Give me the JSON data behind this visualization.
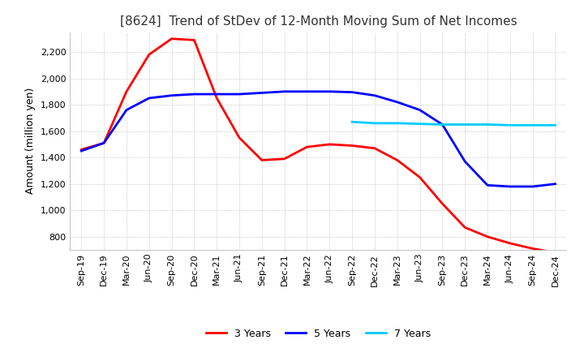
{
  "title": "[8624]  Trend of StDev of 12-Month Moving Sum of Net Incomes",
  "ylabel": "Amount (million yen)",
  "ylim": [
    700,
    2350
  ],
  "yticks": [
    800,
    1000,
    1200,
    1400,
    1600,
    1800,
    2000,
    2200
  ],
  "x_labels": [
    "Sep-19",
    "Dec-19",
    "Mar-20",
    "Jun-20",
    "Sep-20",
    "Dec-20",
    "Mar-21",
    "Jun-21",
    "Sep-21",
    "Dec-21",
    "Mar-22",
    "Jun-22",
    "Sep-22",
    "Dec-22",
    "Mar-23",
    "Jun-23",
    "Sep-23",
    "Dec-23",
    "Mar-24",
    "Jun-24",
    "Sep-24",
    "Dec-24"
  ],
  "series": {
    "3 Years": {
      "color": "#FF0000",
      "values": [
        1460,
        1510,
        1900,
        2180,
        2300,
        2290,
        1850,
        1550,
        1380,
        1390,
        1480,
        1500,
        1490,
        1470,
        1380,
        1250,
        1050,
        870,
        800,
        750,
        710,
        680
      ]
    },
    "5 Years": {
      "color": "#0000FF",
      "values": [
        1450,
        1510,
        1760,
        1850,
        1870,
        1880,
        1880,
        1880,
        1890,
        1900,
        1900,
        1900,
        1895,
        1870,
        1820,
        1760,
        1650,
        1370,
        1190,
        1180,
        1180,
        1200
      ]
    },
    "7 Years": {
      "color": "#00CCFF",
      "values": [
        null,
        null,
        null,
        null,
        null,
        null,
        null,
        null,
        null,
        null,
        null,
        null,
        1670,
        1660,
        1660,
        1655,
        1650,
        1650,
        1650,
        1645,
        1645,
        1645
      ]
    },
    "10 Years": {
      "color": "#00AA00",
      "values": [
        null,
        null,
        null,
        null,
        null,
        null,
        null,
        null,
        null,
        null,
        null,
        null,
        null,
        null,
        null,
        null,
        null,
        null,
        null,
        null,
        null,
        null
      ]
    }
  },
  "background_color": "#FFFFFF",
  "grid_color": "#AAAAAA",
  "grid_style": "dotted",
  "title_fontsize": 11,
  "label_fontsize": 9,
  "tick_fontsize": 8
}
